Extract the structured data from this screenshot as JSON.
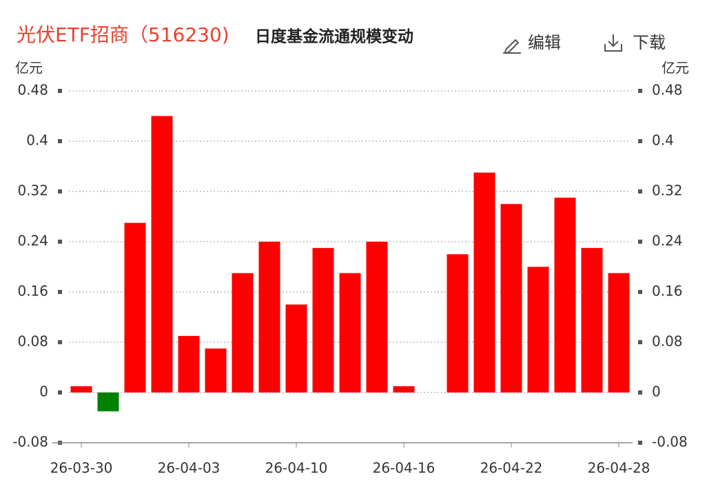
{
  "chart_data": {
    "type": "bar",
    "title": "光伏ETF招商（516230)",
    "subtitle": "日度基金流通规模变动",
    "buttons": [
      "编辑",
      "下载"
    ],
    "y_unit": "亿元",
    "y2_unit": "亿元",
    "categories": [
      "26-03-30",
      null,
      null,
      null,
      "26-04-03",
      null,
      null,
      null,
      "26-04-10",
      null,
      null,
      null,
      "26-04-16",
      null,
      null,
      null,
      "26-04-22",
      null,
      null,
      null,
      "26-04-28"
    ],
    "values": [
      0.01,
      -0.03,
      0.27,
      0.44,
      0.09,
      0.07,
      0.19,
      0.24,
      0.14,
      0.23,
      0.19,
      0.24,
      0.01,
      null,
      0.22,
      0.35,
      0.3,
      0.2,
      0.31,
      0.23,
      0.19
    ],
    "up_color": "#ff0000",
    "down_color": "#008000",
    "ylim": [
      -0.08,
      0.48
    ],
    "yticks": [
      -0.08,
      0,
      0.08,
      0.16,
      0.24,
      0.32,
      0.4,
      0.48
    ],
    "y2lim": [
      -0.08,
      0.48
    ],
    "y2ticks": [
      -0.08,
      0,
      0.08,
      0.16,
      0.24,
      0.32,
      0.4,
      0.48
    ],
    "grid": true
  }
}
